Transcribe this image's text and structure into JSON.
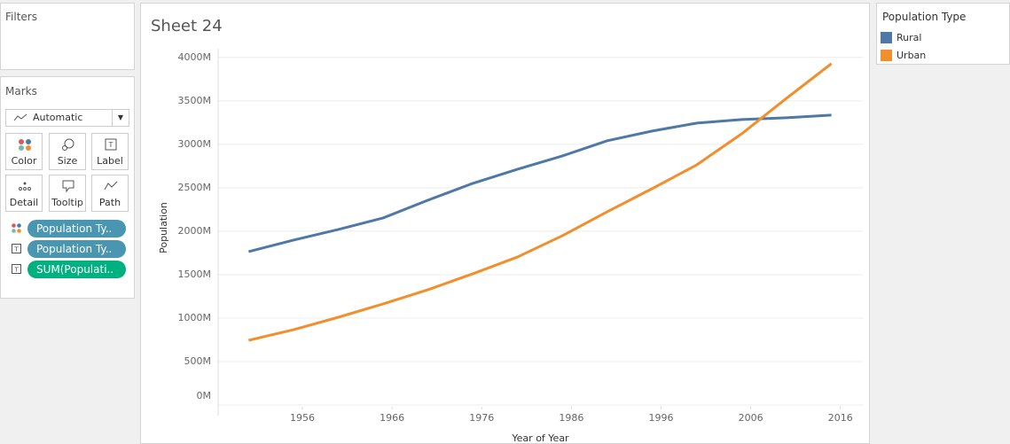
{
  "sidebar": {
    "filters_title": "Filters",
    "marks_title": "Marks",
    "mark_type": "Automatic",
    "cards": [
      "Color",
      "Size",
      "Label",
      "Detail",
      "Tooltip",
      "Path"
    ],
    "pills": [
      "Population Ty..",
      "Population Ty..",
      "SUM(Populati.."
    ]
  },
  "legend_title": "Population Type",
  "chart_data": {
    "type": "line",
    "title": "Sheet 24",
    "x_label": "Year of Year",
    "y_label": "Population",
    "x": [
      1950,
      1955,
      1960,
      1965,
      1970,
      1975,
      1980,
      1985,
      1990,
      1995,
      2000,
      2005,
      2010,
      2015
    ],
    "series": [
      {
        "name": "Rural",
        "color": "#4e79a7",
        "values": [
          1765,
          1898,
          2020,
          2153,
          2357,
          2551,
          2714,
          2867,
          3041,
          3153,
          3245,
          3286,
          3306,
          3337
        ]
      },
      {
        "name": "Urban",
        "color": "#f28e2b",
        "values": [
          745,
          867,
          1010,
          1163,
          1327,
          1510,
          1704,
          1949,
          2224,
          2490,
          2765,
          3122,
          3531,
          3929
        ]
      }
    ],
    "xlim": [
      1946.6,
      2018.5
    ],
    "xticks": [
      1956,
      1966,
      1976,
      1986,
      1996,
      2006,
      2016
    ],
    "ylim": [
      -20,
      4100
    ],
    "yticks": [
      {
        "value": 0,
        "label": "0M"
      },
      {
        "value": 500,
        "label": "500M"
      },
      {
        "value": 1000,
        "label": "1000M"
      },
      {
        "value": 1500,
        "label": "1500M"
      },
      {
        "value": 2000,
        "label": "2000M"
      },
      {
        "value": 2500,
        "label": "2500M"
      },
      {
        "value": 3000,
        "label": "3000M"
      },
      {
        "value": 3500,
        "label": "3500M"
      },
      {
        "value": 4000,
        "label": "4000M"
      }
    ],
    "grid": true
  }
}
